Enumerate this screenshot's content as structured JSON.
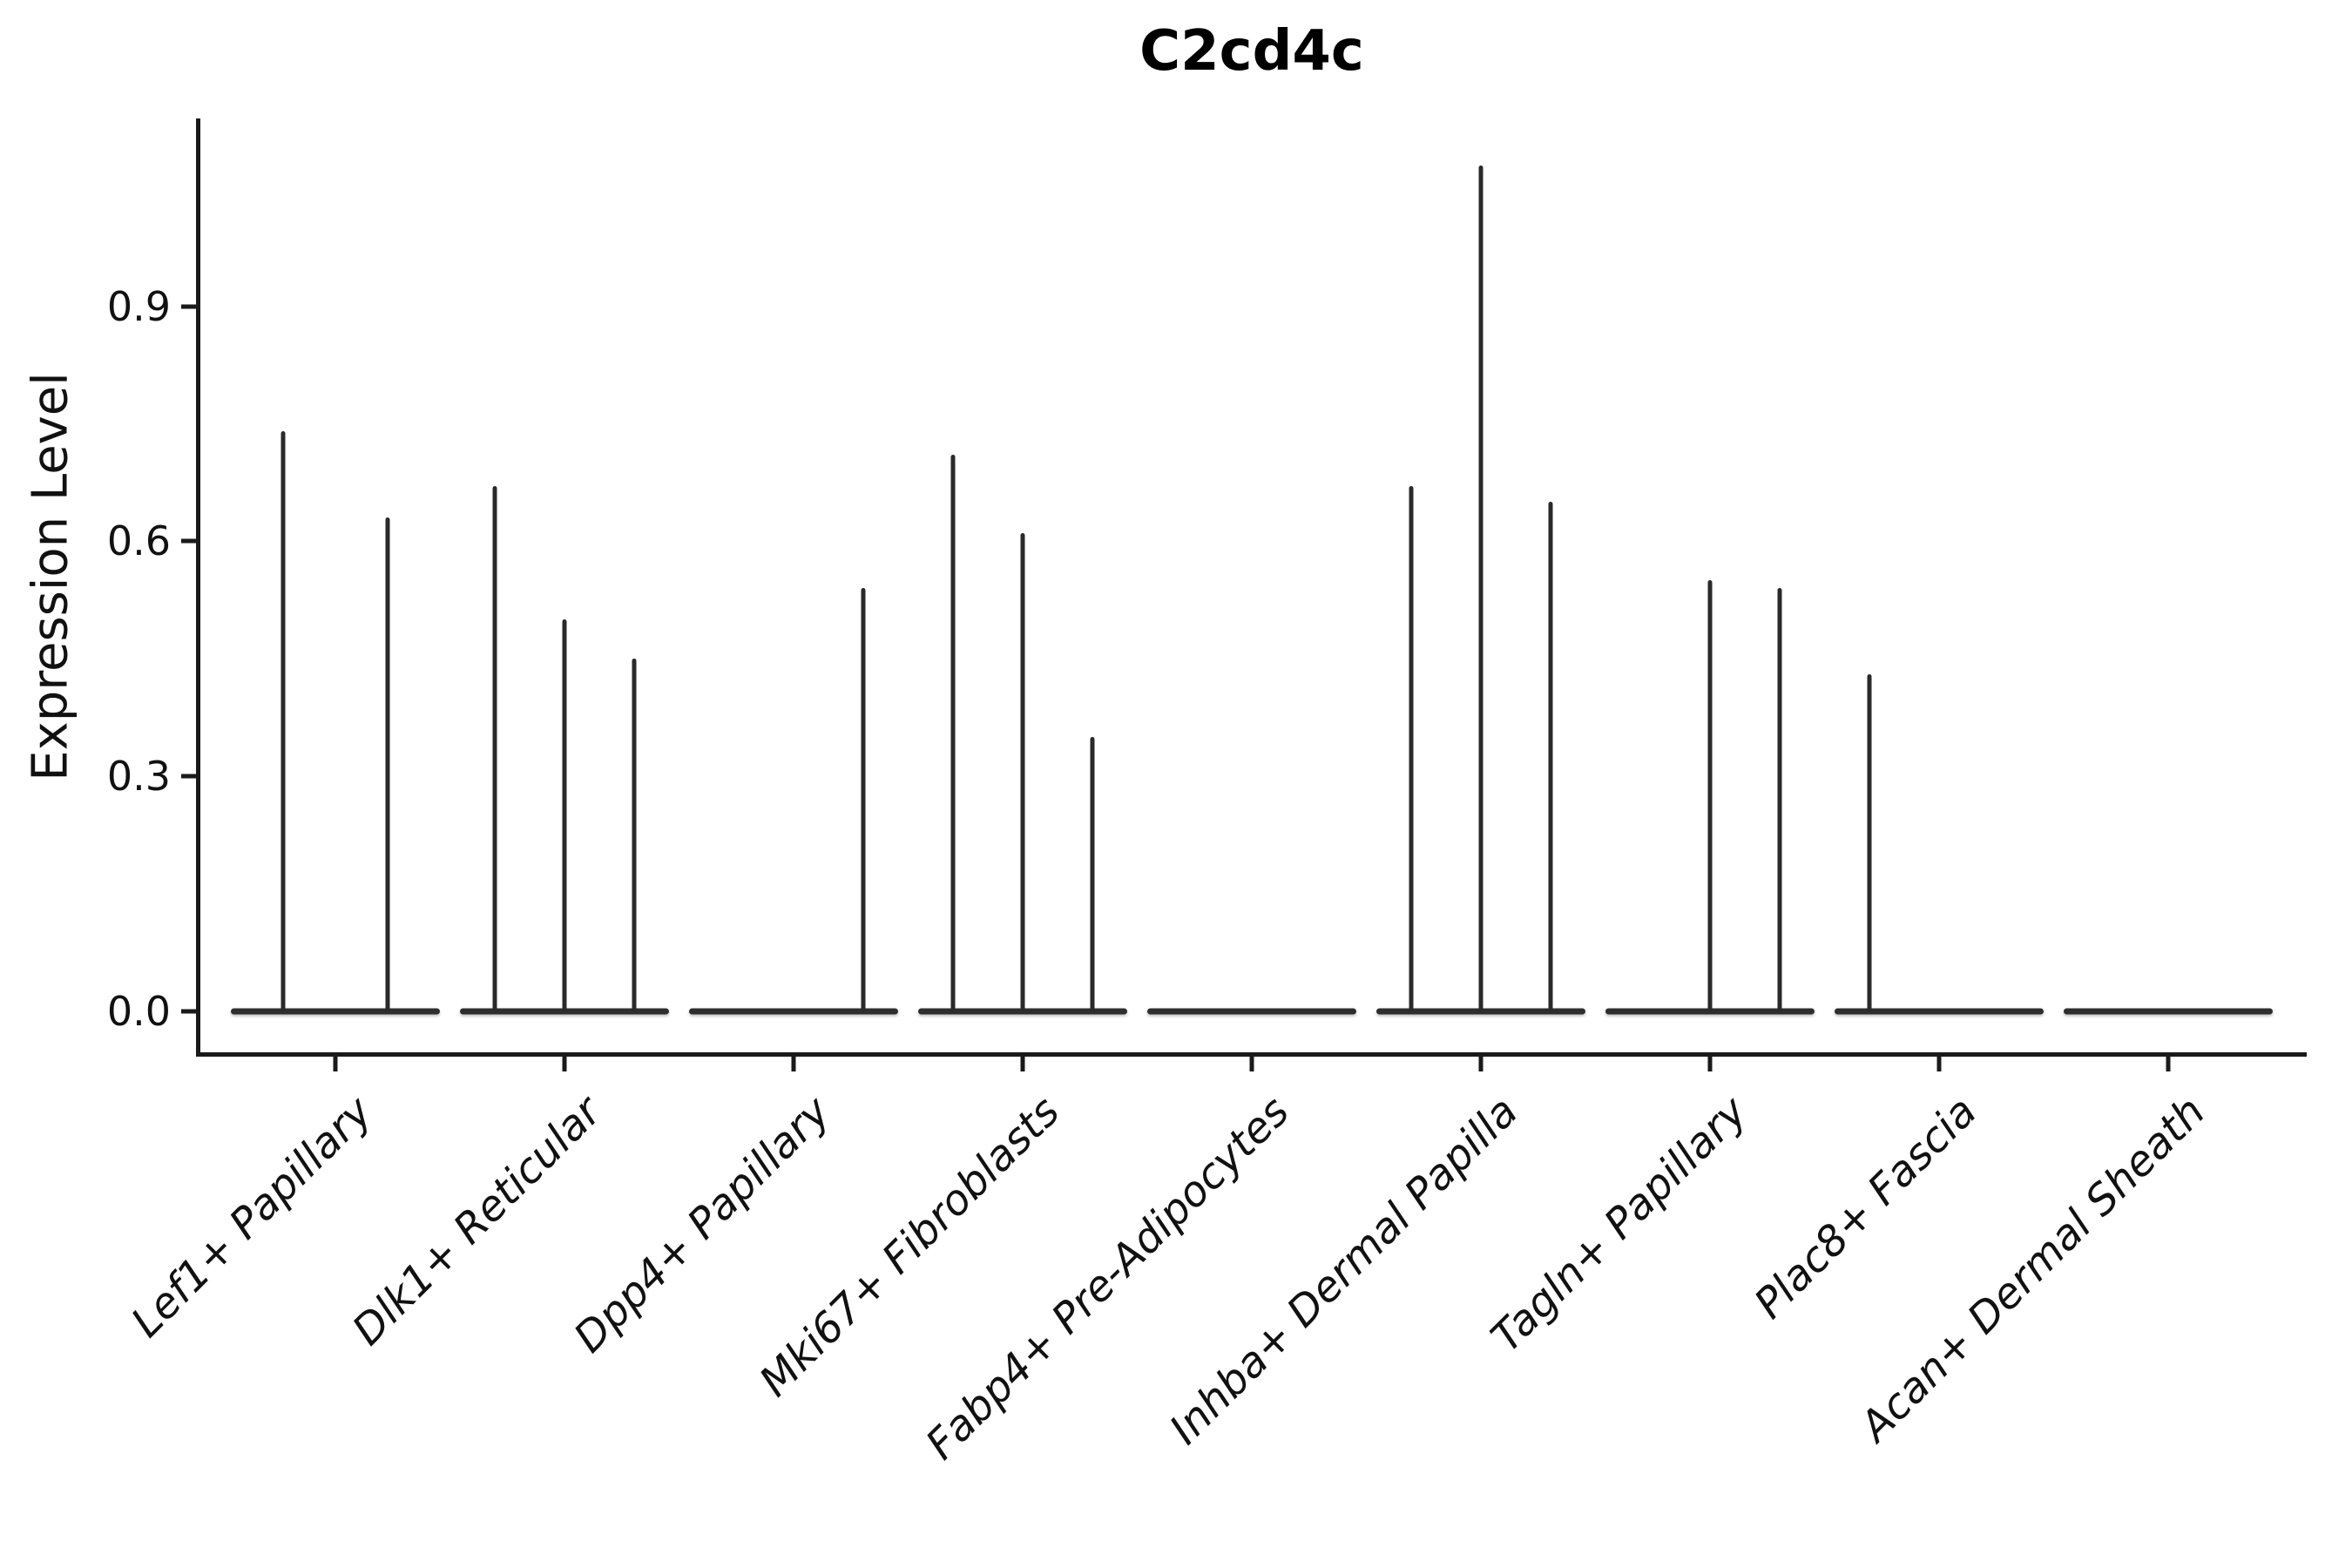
{
  "title": "C2cd4c",
  "ylabel": "Expression Level",
  "accent_color": "#1a1a1a",
  "background_color": "#ffffff",
  "chart_data": {
    "type": "violin",
    "title": "C2cd4c",
    "xlabel": "",
    "ylabel": "Expression Level",
    "ylim": [
      -0.053,
      1.136
    ],
    "yticks": [
      "0.0",
      "0.3",
      "0.6",
      "0.9"
    ],
    "ytick_values": [
      0.0,
      0.3,
      0.6,
      0.9
    ],
    "grid": "off",
    "legend": "none",
    "note": "Collapsed violins: nearly all density at 0 (flat baseline per group) with a thin spike up to the max expression per violin; group 1 has 2 violins, all other groups have 3.",
    "categories": [
      "Lef1+ Papillary",
      "Dlk1+ Reticular",
      "Dpp4+ Papillary",
      "Mki67+ Fibroblasts",
      "Fabp4+ Pre-Adipocytes",
      "Inhba+ Dermal Papilla",
      "Tagln+ Papillary",
      "Plac8+ Fascia",
      "Acan+ Dermal Sheath"
    ],
    "violin_max_values": [
      [
        0.74,
        0.63
      ],
      [
        0.67,
        0.5,
        0.45
      ],
      [
        0.0,
        0.0,
        0.54
      ],
      [
        0.71,
        0.61,
        0.35
      ],
      [
        0.0,
        0.0,
        0.0
      ],
      [
        0.67,
        1.08,
        0.65
      ],
      [
        0.0,
        0.55,
        0.54
      ],
      [
        0.43,
        0.0,
        0.0
      ],
      [
        0.0,
        0.0,
        0.0
      ]
    ]
  }
}
